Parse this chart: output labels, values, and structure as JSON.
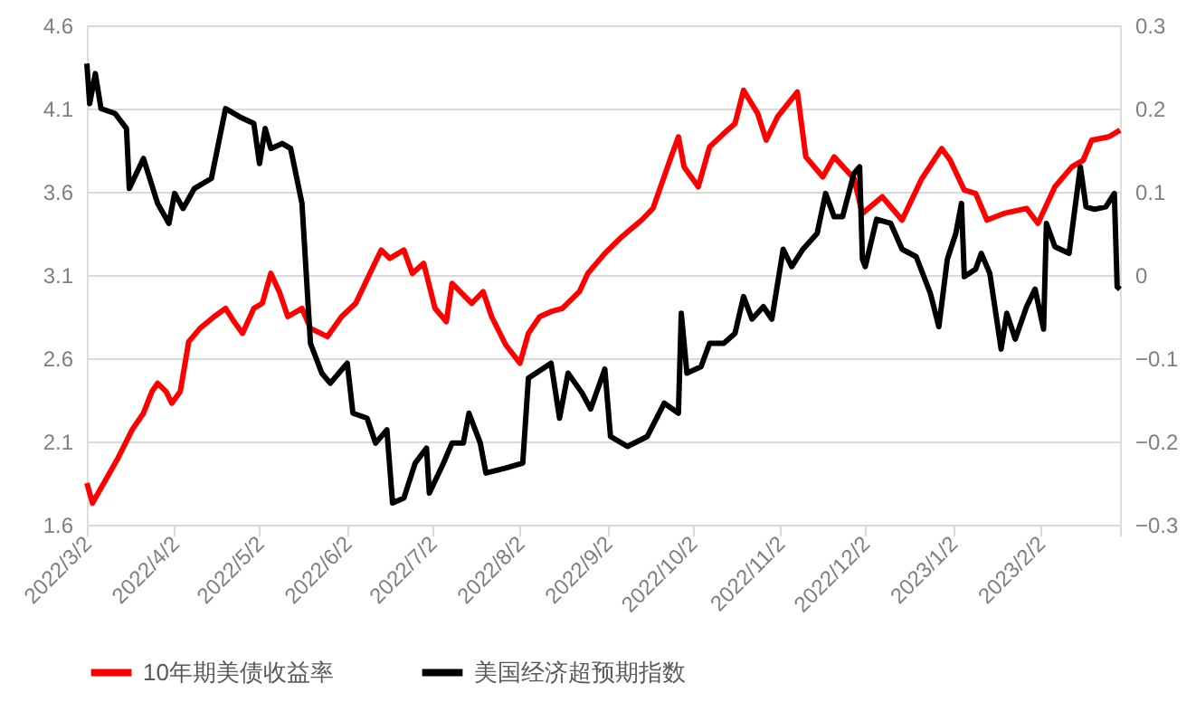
{
  "chart_data": {
    "type": "line",
    "xlim": [
      "2022-03-02",
      "2023-03-02"
    ],
    "xticks": [
      {
        "value": "2022-03-02",
        "label": "2022/3/2"
      },
      {
        "value": "2022-04-02",
        "label": "2022/4/2"
      },
      {
        "value": "2022-05-02",
        "label": "2022/5/2"
      },
      {
        "value": "2022-06-02",
        "label": "2022/6/2"
      },
      {
        "value": "2022-07-02",
        "label": "2022/7/2"
      },
      {
        "value": "2022-08-02",
        "label": "2022/8/2"
      },
      {
        "value": "2022-09-02",
        "label": "2022/9/2"
      },
      {
        "value": "2022-10-02",
        "label": "2022/10/2"
      },
      {
        "value": "2022-11-02",
        "label": "2022/11/2"
      },
      {
        "value": "2022-12-02",
        "label": "2022/12/2"
      },
      {
        "value": "2023-01-02",
        "label": "2023/1/2"
      },
      {
        "value": "2023-02-02",
        "label": "2023/2/2"
      },
      {
        "value": "2023-03-02",
        "label": null
      }
    ],
    "ylim": [
      1.6,
      4.6
    ],
    "yticks": [
      1.6,
      2.1,
      2.6,
      3.1,
      3.6,
      4.1,
      4.6
    ],
    "y2lim": [
      -0.3,
      0.3
    ],
    "y2ticks": [
      -0.3,
      -0.2,
      -0.1,
      0,
      0.1,
      0.2,
      0.3
    ],
    "grid": "y",
    "legend": "bottom",
    "line_style": "solid",
    "marker": "none",
    "series": [
      {
        "name": "10年期美债收益率",
        "color": "#ff0000",
        "x": [
          "2022-03-02",
          "2022-03-04",
          "2022-03-08",
          "2022-03-13",
          "2022-03-18",
          "2022-03-22",
          "2022-03-25",
          "2022-03-27",
          "2022-03-30",
          "2022-04-01",
          "2022-04-04",
          "2022-04-07",
          "2022-04-11",
          "2022-04-16",
          "2022-04-20",
          "2022-04-23",
          "2022-04-26",
          "2022-04-30",
          "2022-05-03",
          "2022-05-06",
          "2022-05-09",
          "2022-05-12",
          "2022-05-17",
          "2022-05-20",
          "2022-05-26",
          "2022-05-31",
          "2022-06-05",
          "2022-06-10",
          "2022-06-14",
          "2022-06-17",
          "2022-06-22",
          "2022-06-25",
          "2022-06-29",
          "2022-07-03",
          "2022-07-07",
          "2022-07-09",
          "2022-07-16",
          "2022-07-20",
          "2022-07-23",
          "2022-07-28",
          "2022-08-02",
          "2022-08-05",
          "2022-08-09",
          "2022-08-13",
          "2022-08-17",
          "2022-08-23",
          "2022-08-26",
          "2022-09-01",
          "2022-09-07",
          "2022-09-14",
          "2022-09-18",
          "2022-09-24",
          "2022-09-27",
          "2022-09-29",
          "2022-10-04",
          "2022-10-08",
          "2022-10-13",
          "2022-10-17",
          "2022-10-20",
          "2022-10-25",
          "2022-10-28",
          "2022-11-01",
          "2022-11-08",
          "2022-11-11",
          "2022-11-17",
          "2022-11-21",
          "2022-11-28",
          "2022-12-01",
          "2022-12-08",
          "2022-12-15",
          "2022-12-22",
          "2022-12-29",
          "2023-01-01",
          "2023-01-06",
          "2023-01-10",
          "2023-01-14",
          "2023-01-20",
          "2023-01-28",
          "2023-02-01",
          "2023-02-07",
          "2023-02-13",
          "2023-02-17",
          "2023-02-20",
          "2023-02-26",
          "2023-03-02"
        ],
        "values": [
          1.85,
          1.73,
          1.85,
          2.0,
          2.17,
          2.27,
          2.4,
          2.45,
          2.4,
          2.33,
          2.4,
          2.7,
          2.78,
          2.85,
          2.9,
          2.82,
          2.75,
          2.9,
          2.93,
          3.11,
          3.0,
          2.85,
          2.9,
          2.78,
          2.73,
          2.85,
          2.93,
          3.11,
          3.25,
          3.2,
          3.25,
          3.11,
          3.17,
          2.9,
          2.82,
          3.05,
          2.93,
          3.0,
          2.85,
          2.68,
          2.57,
          2.75,
          2.85,
          2.88,
          2.9,
          3.0,
          3.11,
          3.23,
          3.33,
          3.43,
          3.5,
          3.79,
          3.93,
          3.75,
          3.63,
          3.87,
          3.95,
          4.01,
          4.21,
          4.07,
          3.91,
          4.05,
          4.2,
          3.81,
          3.69,
          3.81,
          3.68,
          3.47,
          3.57,
          3.43,
          3.68,
          3.86,
          3.79,
          3.61,
          3.59,
          3.43,
          3.47,
          3.5,
          3.41,
          3.63,
          3.75,
          3.79,
          3.91,
          3.93,
          3.97
        ]
      },
      {
        "name": "美国经济超预期指数",
        "color": "#000000",
        "axis": "y2",
        "x": [
          "2022-03-02",
          "2022-03-03",
          "2022-03-05",
          "2022-03-07",
          "2022-03-12",
          "2022-03-16",
          "2022-03-17",
          "2022-03-22",
          "2022-03-27",
          "2022-03-31",
          "2022-04-02",
          "2022-04-05",
          "2022-04-09",
          "2022-04-15",
          "2022-04-20",
          "2022-04-25",
          "2022-04-30",
          "2022-05-02",
          "2022-05-04",
          "2022-05-06",
          "2022-05-10",
          "2022-05-13",
          "2022-05-17",
          "2022-05-20",
          "2022-05-24",
          "2022-05-27",
          "2022-06-02",
          "2022-06-04",
          "2022-06-09",
          "2022-06-12",
          "2022-06-16",
          "2022-06-18",
          "2022-06-22",
          "2022-06-26",
          "2022-06-30",
          "2022-07-01",
          "2022-07-06",
          "2022-07-09",
          "2022-07-13",
          "2022-07-15",
          "2022-07-19",
          "2022-07-21",
          "2022-07-28",
          "2022-08-03",
          "2022-08-05",
          "2022-08-13",
          "2022-08-16",
          "2022-08-19",
          "2022-08-24",
          "2022-08-27",
          "2022-09-01",
          "2022-09-03",
          "2022-09-09",
          "2022-09-16",
          "2022-09-22",
          "2022-09-27",
          "2022-09-28",
          "2022-09-30",
          "2022-10-05",
          "2022-10-08",
          "2022-10-13",
          "2022-10-17",
          "2022-10-20",
          "2022-10-23",
          "2022-10-27",
          "2022-10-30",
          "2022-11-03",
          "2022-11-06",
          "2022-11-10",
          "2022-11-15",
          "2022-11-18",
          "2022-11-21",
          "2022-11-24",
          "2022-11-28",
          "2022-11-30",
          "2022-12-01",
          "2022-12-02",
          "2022-12-06",
          "2022-12-11",
          "2022-12-15",
          "2022-12-20",
          "2022-12-25",
          "2022-12-28",
          "2022-12-31",
          "2023-01-03",
          "2023-01-05",
          "2023-01-06",
          "2023-01-10",
          "2023-01-12",
          "2023-01-15",
          "2023-01-19",
          "2023-01-21",
          "2023-01-24",
          "2023-01-28",
          "2023-01-31",
          "2023-02-03",
          "2023-02-04",
          "2023-02-07",
          "2023-02-12",
          "2023-02-16",
          "2023-02-18",
          "2023-02-21",
          "2023-02-25",
          "2023-02-28",
          "2023-03-01",
          "2023-03-02"
        ],
        "values": [
          0.254,
          0.206,
          0.242,
          0.2,
          0.194,
          0.176,
          0.104,
          0.14,
          0.086,
          0.062,
          0.098,
          0.08,
          0.104,
          0.116,
          0.2,
          0.19,
          0.182,
          0.134,
          0.176,
          0.152,
          0.158,
          0.152,
          0.086,
          -0.082,
          -0.118,
          -0.13,
          -0.106,
          -0.166,
          -0.172,
          -0.202,
          -0.186,
          -0.274,
          -0.268,
          -0.226,
          -0.208,
          -0.262,
          -0.226,
          -0.202,
          -0.202,
          -0.166,
          -0.202,
          -0.238,
          -0.232,
          -0.226,
          -0.124,
          -0.106,
          -0.172,
          -0.118,
          -0.142,
          -0.161,
          -0.113,
          -0.194,
          -0.206,
          -0.194,
          -0.154,
          -0.166,
          -0.046,
          -0.118,
          -0.11,
          -0.082,
          -0.082,
          -0.07,
          -0.026,
          -0.053,
          -0.038,
          -0.053,
          0.031,
          0.01,
          0.031,
          0.05,
          0.098,
          0.07,
          0.07,
          0.122,
          0.13,
          0.019,
          0.01,
          0.067,
          0.062,
          0.031,
          0.022,
          -0.022,
          -0.062,
          0.019,
          0.05,
          0.086,
          -0.002,
          0.007,
          0.026,
          0.002,
          -0.089,
          -0.046,
          -0.077,
          -0.038,
          -0.017,
          -0.065,
          0.062,
          0.034,
          0.026,
          0.13,
          0.082,
          0.079,
          0.082,
          0.098,
          -0.014,
          -0.017
        ]
      }
    ]
  }
}
